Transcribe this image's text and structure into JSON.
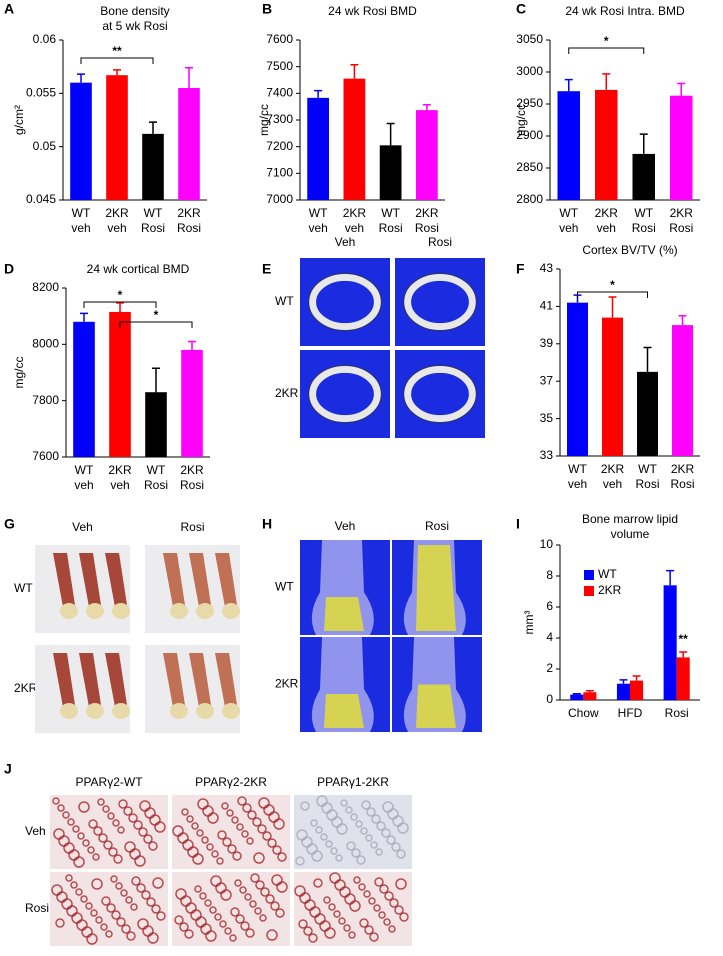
{
  "chart_data": [
    {
      "type": "bar",
      "panel": "A",
      "title": [
        "Bone density",
        "at 5 wk Rosi"
      ],
      "y_label": "g/cm²",
      "categories": [
        [
          "WT",
          "veh"
        ],
        [
          "2KR",
          "veh"
        ],
        [
          "WT",
          "Rosi"
        ],
        [
          "2KR",
          "Rosi"
        ]
      ],
      "values": [
        0.056,
        0.0567,
        0.0512,
        0.0555
      ],
      "errors": [
        0.0008,
        0.0005,
        0.0011,
        0.0019
      ],
      "colors": [
        "#0000ff",
        "#ff0000",
        "#000000",
        "#ff00ff"
      ],
      "ylim": [
        0.045,
        0.06
      ],
      "yticks": [
        0.045,
        0.05,
        0.055,
        0.06
      ],
      "annotations": [
        "**"
      ]
    },
    {
      "type": "bar",
      "panel": "B",
      "title": "24 wk Rosi BMD",
      "y_label": "mg/cc",
      "categories": [
        [
          "WT",
          "veh"
        ],
        [
          "2KR",
          "veh"
        ],
        [
          "WT",
          "Rosi"
        ],
        [
          "2KR",
          "Rosi"
        ]
      ],
      "values": [
        7383,
        7455,
        7205,
        7337
      ],
      "errors": [
        27,
        52,
        82,
        20
      ],
      "colors": [
        "#0000ff",
        "#ff0000",
        "#000000",
        "#ff00ff"
      ],
      "ylim": [
        7000,
        7600
      ],
      "yticks": [
        7000,
        7100,
        7200,
        7300,
        7400,
        7500,
        7600
      ]
    },
    {
      "type": "bar",
      "panel": "C",
      "title": "24 wk Rosi Intra. BMD",
      "y_label": "mg/cc",
      "categories": [
        [
          "WT",
          "veh"
        ],
        [
          "2KR",
          "veh"
        ],
        [
          "WT",
          "Rosi"
        ],
        [
          "2KR",
          "Rosi"
        ]
      ],
      "values": [
        2970,
        2972,
        2872,
        2963
      ],
      "errors": [
        18,
        25,
        31,
        19
      ],
      "colors": [
        "#0000ff",
        "#ff0000",
        "#000000",
        "#ff00ff"
      ],
      "ylim": [
        2800,
        3050
      ],
      "yticks": [
        2800,
        2850,
        2900,
        2950,
        3000,
        3050
      ],
      "annotations": [
        "*"
      ]
    },
    {
      "type": "bar",
      "panel": "D",
      "title": "24 wk cortical BMD",
      "y_label": "mg/cc",
      "categories": [
        [
          "WT",
          "veh"
        ],
        [
          "2KR",
          "veh"
        ],
        [
          "WT",
          "Rosi"
        ],
        [
          "2KR",
          "Rosi"
        ]
      ],
      "values": [
        8080,
        8115,
        7830,
        7980
      ],
      "errors": [
        30,
        32,
        85,
        30
      ],
      "colors": [
        "#0000ff",
        "#ff0000",
        "#000000",
        "#ff00ff"
      ],
      "ylim": [
        7600,
        8200
      ],
      "yticks": [
        7600,
        7800,
        8000,
        8200
      ],
      "annotations": [
        "*",
        "*"
      ]
    },
    {
      "type": "bar",
      "panel": "F",
      "title": "Cortex BV/TV (%)",
      "categories": [
        [
          "WT",
          "veh"
        ],
        [
          "2KR",
          "veh"
        ],
        [
          "WT",
          "Rosi"
        ],
        [
          "2KR",
          "Rosi"
        ]
      ],
      "values": [
        41.2,
        40.4,
        37.5,
        40.0
      ],
      "errors": [
        0.4,
        1.1,
        1.3,
        0.5
      ],
      "colors": [
        "#0000ff",
        "#ff0000",
        "#000000",
        "#ff00ff"
      ],
      "ylim": [
        33,
        43
      ],
      "yticks": [
        33,
        35,
        37,
        39,
        41,
        43
      ],
      "annotations": [
        "*"
      ]
    },
    {
      "type": "grouped_bar",
      "panel": "I",
      "title": [
        "Bone marrow lipid",
        "volume"
      ],
      "y_label": "mm³",
      "categories": [
        "Chow",
        "HFD",
        "Rosi"
      ],
      "series": [
        {
          "name": "WT",
          "color": "#0000ff",
          "values": [
            0.35,
            1.05,
            7.4
          ],
          "errors": [
            0.05,
            0.25,
            0.95
          ]
        },
        {
          "name": "2KR",
          "color": "#ff0000",
          "values": [
            0.5,
            1.25,
            2.75
          ],
          "errors": [
            0.1,
            0.3,
            0.35
          ]
        }
      ],
      "ylim": [
        0,
        10
      ],
      "yticks": [
        0,
        2,
        4,
        6,
        8,
        10
      ],
      "legend": "upper-left",
      "annotations": [
        "**"
      ]
    }
  ],
  "image_panels": [
    {
      "panel": "E",
      "columns": [
        "Veh",
        "Rosi"
      ],
      "rows": [
        "WT",
        "2KR"
      ]
    },
    {
      "panel": "G",
      "columns": [
        "Veh",
        "Rosi"
      ],
      "rows": [
        "WT",
        "2KR"
      ]
    },
    {
      "panel": "H",
      "columns": [
        "Veh",
        "Rosi"
      ],
      "rows": [
        "WT",
        "2KR"
      ]
    },
    {
      "panel": "J",
      "columns": [
        "PPARγ2-WT",
        "PPARγ2-2KR",
        "PPARγ1-2KR"
      ],
      "rows": [
        "Veh",
        "Rosi"
      ]
    }
  ]
}
